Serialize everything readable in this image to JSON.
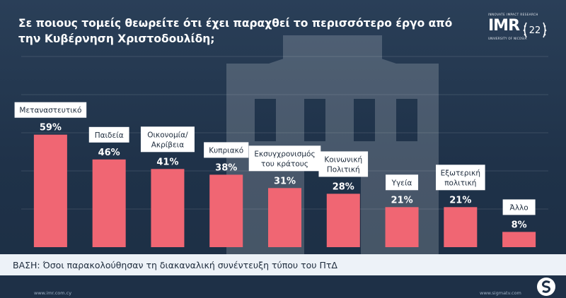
{
  "title": "Σε ποιους τομείς θεωρείτε ότι έχει παραχθεί το περισσότερο έργο από την Κυβέρνηση Χριστοδουλίδη;",
  "logo": {
    "top_text": "INNOVATE IMPACT RESEARCH",
    "brand": "IMR",
    "number": "22",
    "subtitle": "UNIVERSITY OF NICOSIA"
  },
  "base_note": "ΒΑΣΗ: Όσοι παρακολούθησαν τη διακαναλική συνέντευξη τύπου του ΠτΔ",
  "footer": {
    "left_url": "www.imr.com.cy",
    "right_url": "www.sigmatv.com"
  },
  "colors": {
    "bar": "#f06673",
    "background": "#1f3249",
    "label_bg": "#ffffff",
    "base_bg": "#edf2f8"
  },
  "chart_data": {
    "type": "bar",
    "categories": [
      [
        "Μεταναστευτικό"
      ],
      [
        "Παιδεία"
      ],
      [
        "Οικονομία/",
        "Ακρίβεια"
      ],
      [
        "Κυπριακό"
      ],
      [
        "Εκσυγχρονισμός",
        "του κράτους"
      ],
      [
        "Κοινωνική",
        "Πολιτική"
      ],
      [
        "Υγεία"
      ],
      [
        "Εξωτερική",
        "πολιτική"
      ],
      [
        "Άλλο"
      ]
    ],
    "values": [
      59,
      46,
      41,
      38,
      31,
      28,
      21,
      21,
      8
    ],
    "value_labels": [
      "59%",
      "46%",
      "41%",
      "38%",
      "31%",
      "28%",
      "21%",
      "21%",
      "8%"
    ],
    "ylim": [
      0,
      100
    ],
    "grid": true
  }
}
